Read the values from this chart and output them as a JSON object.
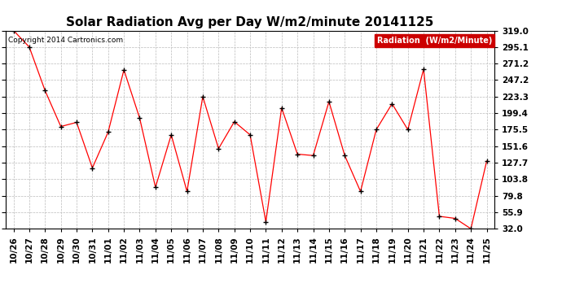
{
  "title": "Solar Radiation Avg per Day W/m2/minute 20141125",
  "copyright": "Copyright 2014 Cartronics.com",
  "legend_label": "Radiation  (W/m2/Minute)",
  "dates": [
    "10/26",
    "10/27",
    "10/28",
    "10/29",
    "10/30",
    "10/31",
    "11/01",
    "11/02",
    "11/03",
    "11/04",
    "11/05",
    "11/06",
    "11/07",
    "11/08",
    "11/09",
    "11/10",
    "11/11",
    "11/12",
    "11/13",
    "11/14",
    "11/15",
    "11/16",
    "11/17",
    "11/18",
    "11/19",
    "11/20",
    "11/21",
    "11/22",
    "11/23",
    "11/24",
    "11/25"
  ],
  "values": [
    319.0,
    295.1,
    232.0,
    180.0,
    186.0,
    120.0,
    172.0,
    262.0,
    192.0,
    92.0,
    168.0,
    86.0,
    223.3,
    148.0,
    187.0,
    168.0,
    42.0,
    207.0,
    140.0,
    138.0,
    216.0,
    138.0,
    86.0,
    175.5,
    213.0,
    175.5,
    263.0,
    50.0,
    47.0,
    32.0,
    130.0
  ],
  "ylim_min": 32.0,
  "ylim_max": 319.0,
  "yticks": [
    319.0,
    295.1,
    271.2,
    247.2,
    223.3,
    199.4,
    175.5,
    151.6,
    127.7,
    103.8,
    79.8,
    55.9,
    32.0
  ],
  "line_color": "red",
  "marker": "+",
  "marker_color": "black",
  "bg_color": "white",
  "grid_color": "#bbbbbb",
  "title_fontsize": 11,
  "tick_fontsize": 7.5,
  "copyright_fontsize": 6.5,
  "legend_fontsize": 7,
  "legend_bg": "#cc0000",
  "legend_fg": "white"
}
